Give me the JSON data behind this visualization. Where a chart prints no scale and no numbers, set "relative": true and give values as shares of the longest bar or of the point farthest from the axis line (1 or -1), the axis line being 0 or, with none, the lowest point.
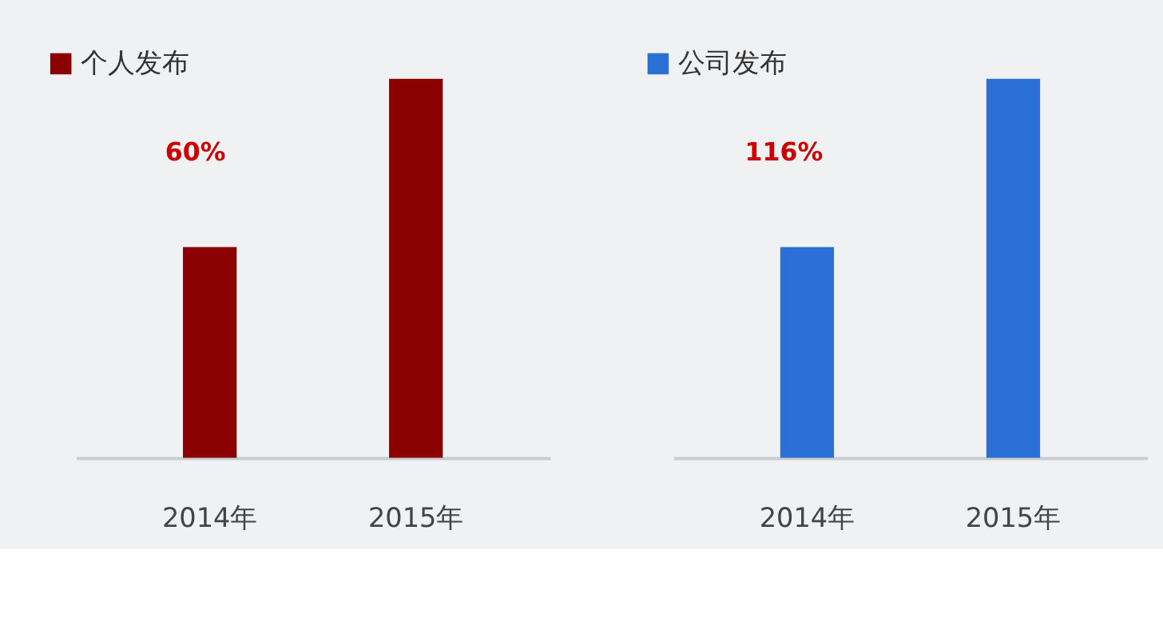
{
  "chart_data": [
    {
      "type": "bar",
      "categories": [
        "2014年",
        "2015年"
      ],
      "relative": true,
      "legend": "top left",
      "annotations": [
        "60%"
      ],
      "series": [
        {
          "name": "个人发布",
          "color": "#8b0000",
          "values": [
            0.556,
            1
          ]
        }
      ]
    },
    {
      "type": "bar",
      "categories": [
        "2014年",
        "2015年"
      ],
      "relative": true,
      "legend": "top left",
      "annotations": [
        "116%"
      ],
      "series": [
        {
          "name": "公司发布",
          "color": "#2a6fd6",
          "values": [
            0.556,
            1
          ]
        }
      ]
    }
  ]
}
